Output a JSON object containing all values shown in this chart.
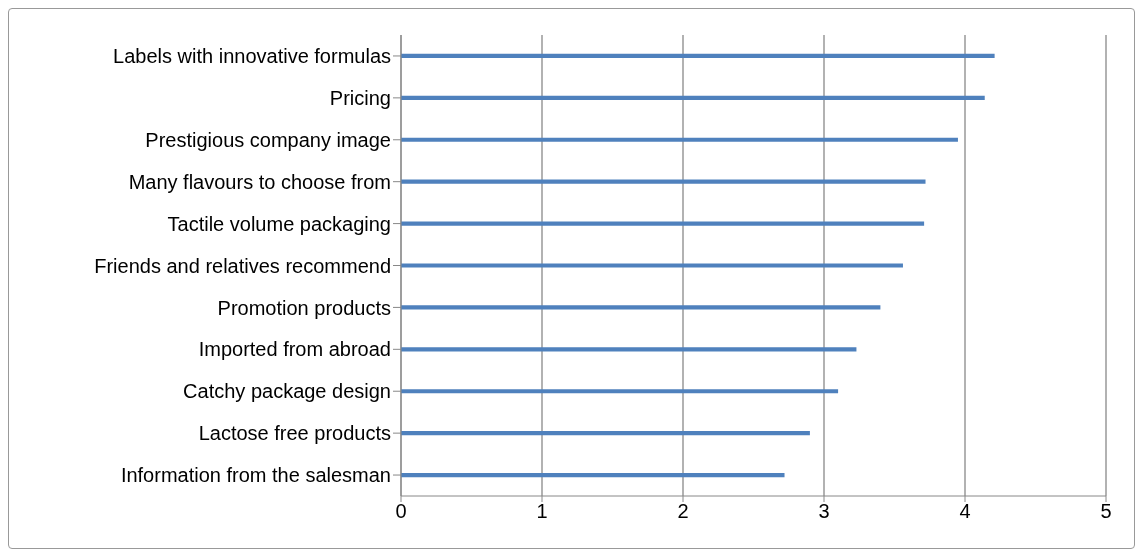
{
  "chart_data": {
    "type": "bar",
    "orientation": "horizontal",
    "categories": [
      "Labels with innovative formulas",
      "Pricing",
      "Prestigious company image",
      "Many flavours to choose from",
      "Tactile volume packaging",
      "Friends and relatives recommend",
      "Promotion products",
      "Imported from abroad",
      "Catchy package design",
      "Lactose free products",
      "Information from the salesman"
    ],
    "values": [
      4.21,
      4.14,
      3.95,
      3.72,
      3.71,
      3.56,
      3.4,
      3.23,
      3.1,
      2.9,
      2.72
    ],
    "color": "#4f81bd",
    "xlim": [
      0,
      5
    ],
    "xticks": [
      0,
      1,
      2,
      3,
      4,
      5
    ],
    "grid": "x",
    "legend": false
  }
}
